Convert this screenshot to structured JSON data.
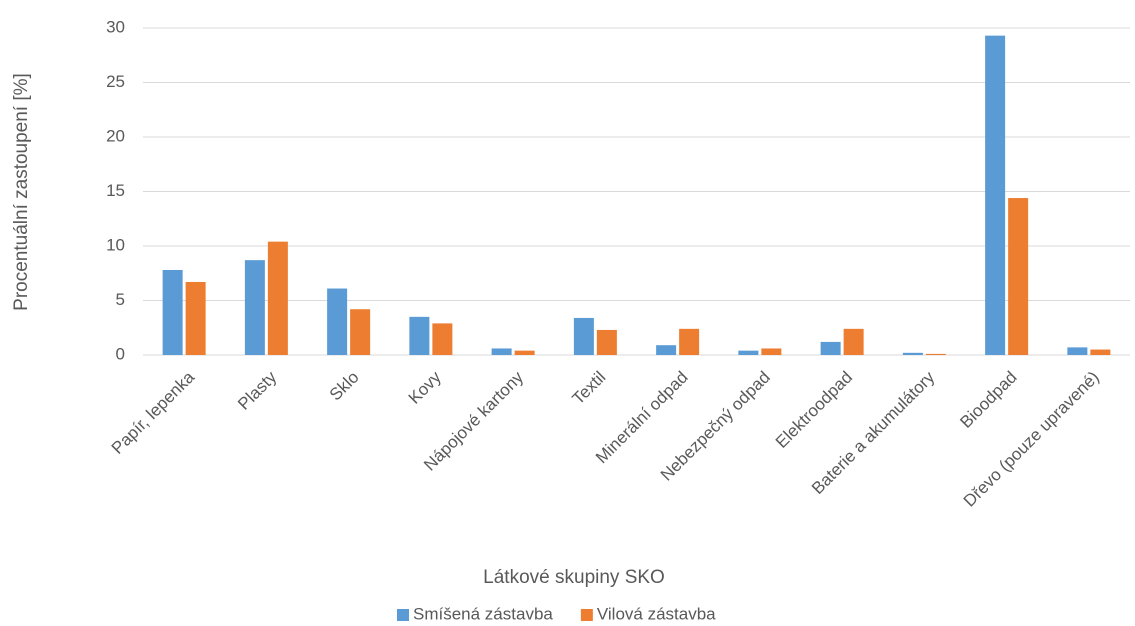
{
  "chart_data": {
    "type": "bar",
    "x_label": "Látkové skupiny SKO",
    "y_label": "Procentuální zastoupení [%]",
    "categories": [
      "Papír, lepenka",
      "Plasty",
      "Sklo",
      "Kovy",
      "Nápojové kartony",
      "Textil",
      "Minerální odpad",
      "Nebezpečný odpad",
      "Elektroodpad",
      "Baterie a akumulátory",
      "Bioodpad",
      "Dřevo (pouze upravené)"
    ],
    "series": [
      {
        "name": "Smíšená zástavba",
        "color": "#5b9bd5",
        "values": [
          7.8,
          8.7,
          6.1,
          3.5,
          0.6,
          3.4,
          0.9,
          0.4,
          1.2,
          0.2,
          29.3,
          0.7
        ]
      },
      {
        "name": "Vilová zástavba",
        "color": "#ed7d31",
        "values": [
          6.7,
          10.4,
          4.2,
          2.9,
          0.4,
          2.3,
          2.4,
          0.6,
          2.4,
          0.1,
          14.4,
          0.5
        ]
      }
    ],
    "ylim": [
      0,
      30
    ],
    "yticks": [
      0,
      5,
      10,
      15,
      20,
      25,
      30
    ],
    "grid": true,
    "legend": "bottom"
  }
}
